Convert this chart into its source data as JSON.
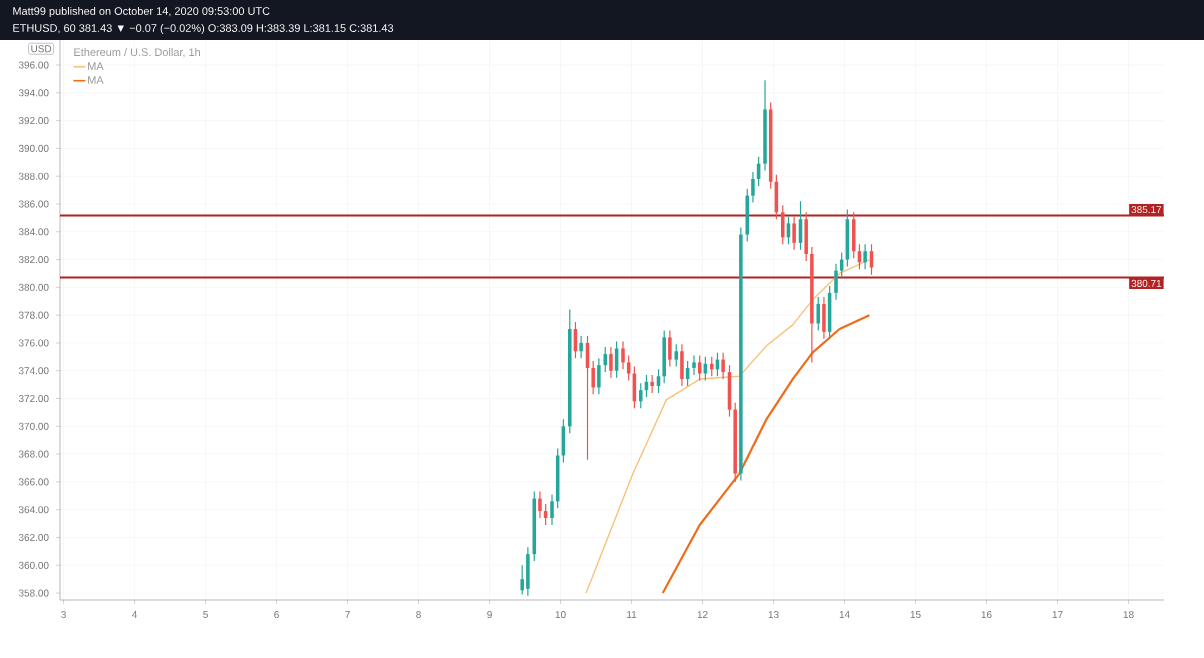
{
  "chart_data": {
    "type": "candlestick",
    "title": "Matt99 published on October 14, 2020 09:53:00 UTC",
    "subtitle": "ETHUSD, 60 381.43 ▼ −0.07 (−0.02%) O:383.09 H:383.39 L:381.15 C:381.43",
    "legend_title": "Ethereum / U.S. Dollar, 1h",
    "ylabel": "USD",
    "x": [
      9.46,
      9.54,
      9.63,
      9.71,
      9.79,
      9.88,
      9.96,
      10.04,
      10.13,
      10.21,
      10.29,
      10.38,
      10.46,
      10.54,
      10.63,
      10.71,
      10.79,
      10.88,
      10.96,
      11.04,
      11.13,
      11.21,
      11.29,
      11.38,
      11.46,
      11.54,
      11.63,
      11.71,
      11.79,
      11.88,
      11.96,
      12.04,
      12.13,
      12.21,
      12.29,
      12.38,
      12.46,
      12.54,
      12.63,
      12.71,
      12.79,
      12.88,
      12.96,
      13.04,
      13.13,
      13.21,
      13.29,
      13.38,
      13.46,
      13.54,
      13.63,
      13.71,
      13.79,
      13.88,
      13.96,
      14.04,
      14.13,
      14.21,
      14.29,
      14.38
    ],
    "ohlc": [
      [
        358.2,
        360.0,
        357.9,
        359.0
      ],
      [
        358.3,
        361.3,
        357.8,
        360.8
      ],
      [
        360.8,
        365.3,
        360.3,
        364.8
      ],
      [
        364.8,
        365.3,
        363.4,
        363.9
      ],
      [
        363.9,
        364.4,
        362.9,
        363.4
      ],
      [
        363.4,
        365.1,
        362.9,
        364.6
      ],
      [
        364.6,
        368.4,
        364.1,
        367.9
      ],
      [
        367.9,
        370.5,
        367.4,
        370.0
      ],
      [
        370.0,
        378.4,
        369.5,
        377.0
      ],
      [
        377.0,
        377.5,
        374.9,
        375.4
      ],
      [
        375.4,
        376.5,
        374.9,
        376.0
      ],
      [
        376.0,
        376.5,
        367.6,
        374.2
      ],
      [
        374.2,
        374.7,
        372.3,
        372.8
      ],
      [
        372.8,
        374.9,
        372.3,
        374.4
      ],
      [
        374.4,
        375.7,
        373.9,
        375.2
      ],
      [
        375.2,
        375.7,
        373.5,
        374.0
      ],
      [
        374.0,
        376.1,
        373.5,
        375.6
      ],
      [
        375.6,
        376.1,
        374.1,
        374.6
      ],
      [
        374.6,
        375.1,
        373.3,
        373.8
      ],
      [
        373.8,
        374.3,
        371.3,
        371.8
      ],
      [
        371.8,
        373.1,
        371.3,
        372.6
      ],
      [
        372.6,
        373.7,
        372.1,
        373.2
      ],
      [
        373.2,
        373.7,
        372.4,
        372.9
      ],
      [
        372.9,
        374.1,
        372.4,
        373.6
      ],
      [
        373.6,
        376.9,
        373.1,
        376.4
      ],
      [
        376.4,
        376.9,
        374.3,
        374.8
      ],
      [
        374.8,
        375.9,
        374.3,
        375.4
      ],
      [
        375.4,
        375.9,
        372.9,
        373.4
      ],
      [
        373.4,
        374.7,
        372.9,
        374.2
      ],
      [
        374.2,
        375.1,
        373.7,
        374.6
      ],
      [
        374.6,
        375.1,
        373.3,
        373.8
      ],
      [
        373.8,
        375.0,
        373.3,
        374.5
      ],
      [
        374.5,
        375.0,
        373.6,
        374.1
      ],
      [
        374.1,
        375.3,
        373.6,
        374.8
      ],
      [
        374.8,
        375.3,
        373.4,
        373.9
      ],
      [
        373.9,
        374.4,
        370.7,
        371.2
      ],
      [
        371.2,
        371.7,
        366.0,
        366.6
      ],
      [
        366.6,
        384.3,
        366.1,
        383.8
      ],
      [
        383.8,
        387.1,
        383.3,
        386.6
      ],
      [
        386.6,
        388.3,
        386.1,
        387.8
      ],
      [
        387.8,
        389.4,
        387.3,
        388.9
      ],
      [
        388.9,
        394.9,
        388.4,
        392.8
      ],
      [
        392.8,
        393.3,
        387.1,
        387.6
      ],
      [
        387.6,
        388.1,
        384.9,
        385.4
      ],
      [
        385.4,
        385.9,
        383.1,
        383.6
      ],
      [
        383.6,
        385.1,
        383.1,
        384.6
      ],
      [
        384.6,
        385.1,
        382.7,
        383.2
      ],
      [
        383.2,
        386.2,
        382.7,
        384.9
      ],
      [
        384.9,
        385.4,
        381.9,
        382.4
      ],
      [
        382.4,
        382.9,
        374.6,
        377.4
      ],
      [
        377.4,
        379.3,
        376.9,
        378.8
      ],
      [
        378.8,
        379.3,
        376.3,
        376.8
      ],
      [
        376.8,
        380.1,
        376.3,
        379.6
      ],
      [
        379.6,
        381.7,
        379.1,
        381.2
      ],
      [
        381.2,
        382.5,
        380.7,
        382.0
      ],
      [
        382.0,
        385.6,
        381.5,
        384.9
      ],
      [
        384.9,
        385.4,
        382.1,
        382.6
      ],
      [
        382.6,
        383.1,
        381.3,
        381.8
      ],
      [
        381.8,
        383.1,
        381.3,
        382.6
      ],
      [
        382.6,
        383.1,
        380.9,
        381.43
      ]
    ],
    "colors": [
      "#26a69a",
      "#26a69a",
      "#26a69a",
      "#ef5350",
      "#ef5350",
      "#26a69a",
      "#26a69a",
      "#26a69a",
      "#26a69a",
      "#ef5350",
      "#26a69a",
      "#ef5350",
      "#ef5350",
      "#26a69a",
      "#26a69a",
      "#ef5350",
      "#26a69a",
      "#ef5350",
      "#ef5350",
      "#ef5350",
      "#26a69a",
      "#26a69a",
      "#ef5350",
      "#26a69a",
      "#26a69a",
      "#ef5350",
      "#26a69a",
      "#ef5350",
      "#26a69a",
      "#26a69a",
      "#ef5350",
      "#26a69a",
      "#ef5350",
      "#26a69a",
      "#ef5350",
      "#ef5350",
      "#ef5350",
      "#26a69a",
      "#26a69a",
      "#26a69a",
      "#26a69a",
      "#26a69a",
      "#ef5350",
      "#ef5350",
      "#ef5350",
      "#26a69a",
      "#ef5350",
      "#26a69a",
      "#ef5350",
      "#ef5350",
      "#26a69a",
      "#ef5350",
      "#26a69a",
      "#26a69a",
      "#26a69a",
      "#26a69a",
      "#ef5350",
      "#ef5350",
      "#26a69a",
      "#ef5350"
    ],
    "series": [
      {
        "name": "MA",
        "type": "line",
        "color": "#f9c27a",
        "x": [
          10.36,
          11.02,
          11.49,
          11.96,
          12.52,
          12.9,
          13.27,
          13.55,
          13.93,
          14.35
        ],
        "values": [
          358.0,
          366.6,
          371.9,
          373.4,
          373.6,
          375.8,
          377.3,
          379.1,
          381.0,
          382.0
        ]
      },
      {
        "name": "MA",
        "type": "line",
        "color": "#ef6c1a",
        "x": [
          11.44,
          11.96,
          12.52,
          12.9,
          13.27,
          13.55,
          13.93,
          14.35
        ],
        "values": [
          358.0,
          362.9,
          366.6,
          370.5,
          373.4,
          375.3,
          377.0,
          378.0
        ]
      }
    ],
    "ref_lines": [
      {
        "axis": "y",
        "value": 385.17,
        "label": "385.17",
        "color": "#b22222"
      },
      {
        "axis": "y",
        "value": 380.71,
        "label": "380.71",
        "color": "#b22222"
      }
    ],
    "xlim": [
      2.95,
      18.5
    ],
    "xticks": [
      3,
      4,
      5,
      6,
      7,
      8,
      9,
      10,
      11,
      12,
      13,
      14,
      15,
      16,
      17,
      18
    ],
    "ylim": [
      357.5,
      397.8
    ],
    "yticks": [
      {
        "value": 358,
        "label": "358.00"
      },
      {
        "value": 360,
        "label": "360.00"
      },
      {
        "value": 362,
        "label": "362.00"
      },
      {
        "value": 364,
        "label": "364.00"
      },
      {
        "value": 366,
        "label": "366.00"
      },
      {
        "value": 368,
        "label": "368.00"
      },
      {
        "value": 370,
        "label": "370.00"
      },
      {
        "value": 372,
        "label": "372.00"
      },
      {
        "value": 374,
        "label": "374.00"
      },
      {
        "value": 376,
        "label": "376.00"
      },
      {
        "value": 378,
        "label": "378.00"
      },
      {
        "value": 380,
        "label": "380.00"
      },
      {
        "value": 382,
        "label": "382.00"
      },
      {
        "value": 384,
        "label": "384.00"
      },
      {
        "value": 386,
        "label": "386.00"
      },
      {
        "value": 388,
        "label": "388.00"
      },
      {
        "value": 390,
        "label": "390.00"
      },
      {
        "value": 392,
        "label": "392.00"
      },
      {
        "value": 394,
        "label": "394.00"
      },
      {
        "value": 396,
        "label": "396.00"
      }
    ],
    "grid": true,
    "legend": "top left"
  }
}
